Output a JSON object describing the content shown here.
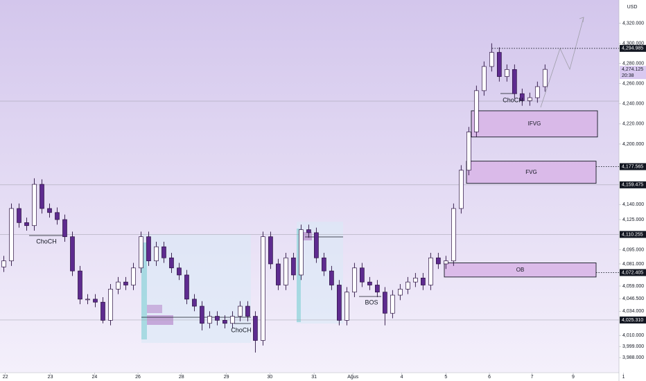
{
  "chart_data": {
    "type": "candlestick",
    "currency": "USD",
    "xlim": [
      -0.5,
      80.7
    ],
    "ylim": [
      3973,
      4343
    ],
    "xticks": [
      {
        "value": 0.2,
        "label": "22"
      },
      {
        "value": 6.1,
        "label": "23"
      },
      {
        "value": 11.9,
        "label": "24"
      },
      {
        "value": 17.6,
        "label": "26"
      },
      {
        "value": 23.3,
        "label": "28"
      },
      {
        "value": 29.2,
        "label": "29"
      },
      {
        "value": 34.9,
        "label": "30"
      },
      {
        "value": 40.7,
        "label": "31"
      },
      {
        "value": 45.8,
        "label": "Ağus"
      },
      {
        "value": 52.2,
        "label": "4"
      },
      {
        "value": 58,
        "label": "5"
      },
      {
        "value": 63.7,
        "label": "6"
      },
      {
        "value": 69.3,
        "label": "7"
      },
      {
        "value": 74.7,
        "label": "9"
      },
      {
        "value": 81.3,
        "label": "1"
      }
    ],
    "yticks": [
      {
        "value": 4320,
        "label": "4,320.000"
      },
      {
        "value": 4300,
        "label": "4,300.000"
      },
      {
        "value": 4280,
        "label": "4,280.000"
      },
      {
        "value": 4260,
        "label": "4,260.000"
      },
      {
        "value": 4240,
        "label": "4,240.000"
      },
      {
        "value": 4220,
        "label": "4,220.000"
      },
      {
        "value": 4200,
        "label": "4,200.000"
      },
      {
        "value": 4140,
        "label": "4,140.000"
      },
      {
        "value": 4125,
        "label": "4,125.000"
      },
      {
        "value": 4095,
        "label": "4,095.000"
      },
      {
        "value": 4081,
        "label": "4,081.000"
      },
      {
        "value": 4059,
        "label": "4,059.000"
      },
      {
        "value": 4046.5,
        "label": "4,046.500"
      },
      {
        "value": 4034,
        "label": "4,034.000"
      },
      {
        "value": 4010,
        "label": "4,010.000"
      },
      {
        "value": 3999,
        "label": "3,999.000"
      },
      {
        "value": 3988,
        "label": "3,988.000"
      }
    ],
    "price_labels": [
      {
        "value": 4294.985,
        "label": "4,294.985"
      },
      {
        "value": 4177.565,
        "label": "4,177.565"
      },
      {
        "value": 4159.475,
        "label": "4,159.475"
      },
      {
        "value": 4110.255,
        "label": "4,110.255"
      },
      {
        "value": 4072.405,
        "label": "4,072.405"
      },
      {
        "value": 4025.31,
        "label": "4,025.310"
      }
    ],
    "current_price": {
      "value": 4274.125,
      "label": "4,274.125",
      "countdown": "20:38"
    },
    "up_color": "#ffffff",
    "down_color": "#5e2b8f",
    "open": [
      4078,
      4084,
      4136,
      4122,
      4119,
      4160,
      4136,
      4132,
      4125,
      4108,
      4074,
      4046,
      4046,
      4043,
      4025,
      4056,
      4063,
      4060,
      4077,
      4108,
      4084,
      4098,
      4087,
      4077,
      4070,
      4046,
      4039,
      4022,
      4029,
      4025,
      4022,
      4029,
      4039,
      4029,
      4005,
      4108,
      4081,
      4060,
      4087,
      4070,
      4115,
      4112,
      4087,
      4074,
      4060,
      4025,
      4053,
      4077,
      4063,
      4060,
      4053,
      4032,
      4050,
      4056,
      4063,
      4067,
      4060,
      4087,
      4081,
      4084,
      4136,
      4174,
      4212,
      4253,
      4277,
      4291,
      4267,
      4274,
      4250,
      4243,
      4246,
      4257
    ],
    "high": [
      4089,
      4141,
      4141,
      4127,
      4166,
      4165,
      4141,
      4137,
      4130,
      4113,
      4079,
      4051,
      4051,
      4048,
      4061,
      4068,
      4068,
      4082,
      4113,
      4113,
      4103,
      4103,
      4092,
      4082,
      4075,
      4051,
      4044,
      4034,
      4034,
      4030,
      4034,
      4044,
      4044,
      4034,
      4113,
      4113,
      4086,
      4092,
      4092,
      4120,
      4120,
      4117,
      4092,
      4079,
      4065,
      4058,
      4082,
      4082,
      4068,
      4065,
      4058,
      4055,
      4061,
      4068,
      4072,
      4072,
      4092,
      4092,
      4089,
      4141,
      4179,
      4217,
      4258,
      4282,
      4300,
      4296,
      4279,
      4279,
      4255,
      4251,
      4262,
      4279
    ],
    "low": [
      4073,
      4079,
      4117,
      4114,
      4114,
      4131,
      4127,
      4120,
      4103,
      4069,
      4041,
      4041,
      4038,
      4022,
      4020,
      4051,
      4055,
      4055,
      4072,
      4079,
      4079,
      4082,
      4072,
      4065,
      4041,
      4034,
      4015,
      4017,
      4020,
      4017,
      4017,
      4024,
      4024,
      3993,
      4000,
      4076,
      4055,
      4055,
      4065,
      4065,
      4107,
      4082,
      4069,
      4055,
      4020,
      4020,
      4048,
      4058,
      4055,
      4048,
      4020,
      4027,
      4045,
      4051,
      4058,
      4055,
      4055,
      4076,
      4076,
      4079,
      4131,
      4169,
      4207,
      4248,
      4272,
      4262,
      4262,
      4245,
      4238,
      4238,
      4241,
      4252
    ],
    "close": [
      4084,
      4136,
      4122,
      4119,
      4160,
      4136,
      4132,
      4125,
      4108,
      4074,
      4046,
      4046,
      4043,
      4025,
      4056,
      4063,
      4060,
      4077,
      4108,
      4084,
      4098,
      4087,
      4077,
      4070,
      4046,
      4039,
      4022,
      4029,
      4025,
      4022,
      4029,
      4039,
      4029,
      4005,
      4108,
      4081,
      4060,
      4087,
      4070,
      4115,
      4112,
      4087,
      4074,
      4060,
      4025,
      4053,
      4077,
      4063,
      4060,
      4053,
      4032,
      4050,
      4056,
      4063,
      4067,
      4060,
      4087,
      4081,
      4084,
      4136,
      4174,
      4212,
      4253,
      4277,
      4291,
      4267,
      4274,
      4250,
      4243,
      4246,
      4257,
      4274.125
    ],
    "zones": [
      {
        "label": "IFVG",
        "range": [
          4207,
          4233
        ]
      },
      {
        "label": "FVG",
        "range": [
          4161,
          4183
        ]
      },
      {
        "label": "OB",
        "range": [
          4068,
          4082
        ]
      }
    ],
    "annotations": [
      "ChoCH",
      "ChoCH",
      "ChoCH",
      "BOS"
    ]
  }
}
